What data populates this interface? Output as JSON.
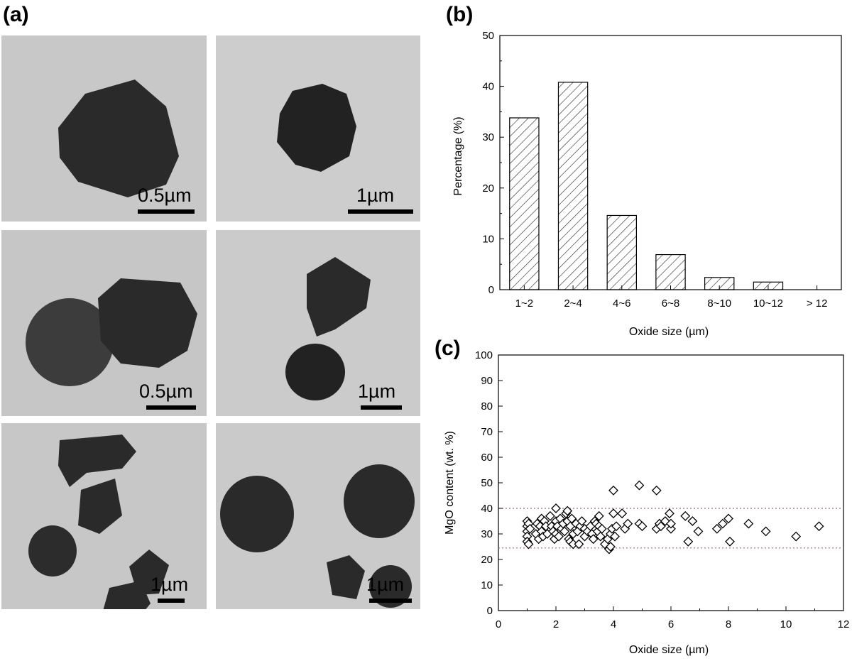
{
  "panels": {
    "a": {
      "label": "(a)"
    },
    "b": {
      "label": "(b)"
    },
    "c": {
      "label": "(c)"
    }
  },
  "micrographs": [
    {
      "scale": "0.5µm"
    },
    {
      "scale": "1µm"
    },
    {
      "scale": "0.5µm"
    },
    {
      "scale": "1µm"
    },
    {
      "scale": "1µm"
    },
    {
      "scale": "1µm"
    }
  ],
  "chart_data": [
    {
      "type": "bar",
      "panel": "b",
      "categories": [
        "1~2",
        "2~4",
        "4~6",
        "6~8",
        "8~10",
        "10~12",
        "> 12"
      ],
      "values": [
        33.8,
        40.8,
        14.6,
        6.9,
        2.4,
        1.5,
        0
      ],
      "xlabel": "Oxide size (µm)",
      "ylabel": "Percentage (%)",
      "ylim": [
        0,
        50
      ],
      "yticks": [
        0,
        10,
        20,
        30,
        40,
        50
      ],
      "fill": "hatched",
      "grid": false
    },
    {
      "type": "scatter",
      "panel": "c",
      "xlabel": "Oxide size (µm)",
      "ylabel": "MgO content (wt. %)",
      "xlim": [
        0,
        12
      ],
      "ylim": [
        0,
        100
      ],
      "xticks": [
        0,
        2,
        4,
        6,
        8,
        10,
        12
      ],
      "yticks": [
        0,
        10,
        20,
        30,
        40,
        50,
        60,
        70,
        80,
        90,
        100
      ],
      "reference_lines": [
        40,
        24.5
      ],
      "reference_color": "#9e6b7a",
      "marker": "open-diamond",
      "grid": false,
      "points": [
        [
          1.0,
          35
        ],
        [
          1.0,
          33
        ],
        [
          1.0,
          31
        ],
        [
          1.0,
          29
        ],
        [
          1.0,
          27
        ],
        [
          1.05,
          34
        ],
        [
          1.05,
          26
        ],
        [
          1.1,
          32
        ],
        [
          1.3,
          30
        ],
        [
          1.35,
          34
        ],
        [
          1.4,
          28
        ],
        [
          1.45,
          33
        ],
        [
          1.5,
          36
        ],
        [
          1.5,
          31
        ],
        [
          1.55,
          29
        ],
        [
          1.6,
          35
        ],
        [
          1.65,
          33
        ],
        [
          1.7,
          30
        ],
        [
          1.8,
          37
        ],
        [
          1.85,
          33
        ],
        [
          1.9,
          31
        ],
        [
          1.95,
          28
        ],
        [
          2.0,
          40
        ],
        [
          2.0,
          35
        ],
        [
          2.0,
          30
        ],
        [
          2.05,
          33
        ],
        [
          2.1,
          29
        ],
        [
          2.15,
          36
        ],
        [
          2.2,
          32
        ],
        [
          2.25,
          34
        ],
        [
          2.3,
          31
        ],
        [
          2.35,
          38
        ],
        [
          2.4,
          39
        ],
        [
          2.4,
          35
        ],
        [
          2.45,
          28
        ],
        [
          2.5,
          33
        ],
        [
          2.5,
          27
        ],
        [
          2.55,
          36
        ],
        [
          2.6,
          30
        ],
        [
          2.6,
          26
        ],
        [
          2.7,
          34
        ],
        [
          2.75,
          31
        ],
        [
          2.8,
          26
        ],
        [
          2.85,
          33
        ],
        [
          2.9,
          35
        ],
        [
          3.0,
          32
        ],
        [
          3.0,
          29
        ],
        [
          3.1,
          31
        ],
        [
          3.2,
          33
        ],
        [
          3.25,
          30
        ],
        [
          3.3,
          28
        ],
        [
          3.35,
          35
        ],
        [
          3.4,
          34
        ],
        [
          3.45,
          31
        ],
        [
          3.5,
          37
        ],
        [
          3.5,
          33
        ],
        [
          3.55,
          29
        ],
        [
          3.6,
          32
        ],
        [
          3.7,
          26
        ],
        [
          3.8,
          28
        ],
        [
          3.85,
          24
        ],
        [
          3.9,
          30
        ],
        [
          3.9,
          25
        ],
        [
          3.95,
          32
        ],
        [
          4.0,
          47
        ],
        [
          4.0,
          38
        ],
        [
          4.05,
          29
        ],
        [
          4.1,
          33
        ],
        [
          4.3,
          38
        ],
        [
          4.4,
          32
        ],
        [
          4.5,
          34
        ],
        [
          4.9,
          49
        ],
        [
          4.9,
          34
        ],
        [
          5.0,
          33
        ],
        [
          5.5,
          47
        ],
        [
          5.5,
          32
        ],
        [
          5.6,
          34
        ],
        [
          5.65,
          33
        ],
        [
          5.8,
          35
        ],
        [
          5.95,
          38
        ],
        [
          6.0,
          32
        ],
        [
          6.0,
          34
        ],
        [
          6.5,
          37
        ],
        [
          6.6,
          27
        ],
        [
          6.75,
          35
        ],
        [
          6.95,
          31
        ],
        [
          7.6,
          32
        ],
        [
          7.8,
          34
        ],
        [
          8.0,
          36
        ],
        [
          8.05,
          27
        ],
        [
          8.7,
          34
        ],
        [
          9.3,
          31
        ],
        [
          10.35,
          29
        ],
        [
          11.15,
          33
        ]
      ]
    }
  ]
}
